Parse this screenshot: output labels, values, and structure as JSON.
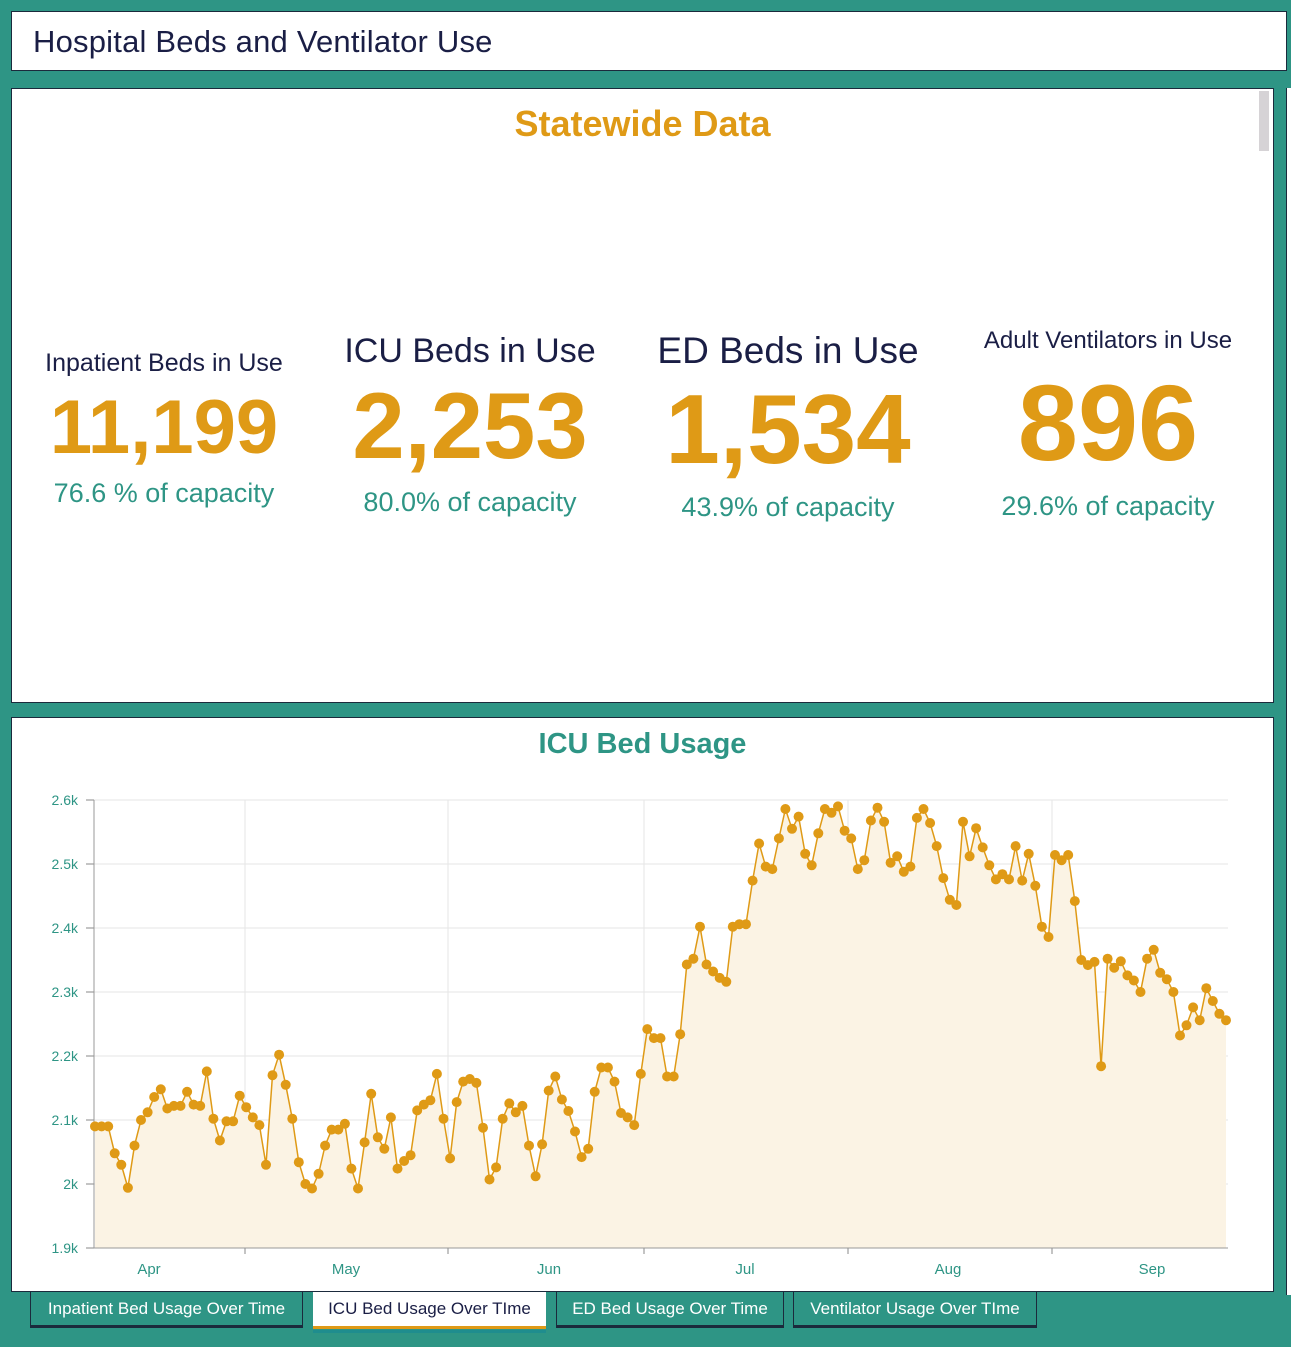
{
  "header": {
    "title": "Hospital Beds and Ventilator Use"
  },
  "summary": {
    "heading": "Statewide Data",
    "stats": [
      {
        "label": "Inpatient Beds in Use",
        "value": "11,199",
        "capacity": "76.6 % of capacity"
      },
      {
        "label": "ICU Beds in Use",
        "value": "2,253",
        "capacity": "80.0% of capacity"
      },
      {
        "label": "ED Beds in Use",
        "value": "1,534",
        "capacity": "43.9% of capacity"
      },
      {
        "label": "Adult Ventilators in Use",
        "value": "896",
        "capacity": "29.6% of capacity"
      }
    ]
  },
  "colors": {
    "accent": "#df9a16",
    "teal": "#2e9585",
    "navy": "#1a1e45",
    "area_fill": "#fbf3e4"
  },
  "tabs": [
    {
      "label": "Inpatient Bed Usage Over Time",
      "active": false
    },
    {
      "label": "ICU Bed Usage Over TIme",
      "active": true
    },
    {
      "label": "ED Bed Usage Over Time",
      "active": false
    },
    {
      "label": "Ventilator Usage Over TIme",
      "active": false
    }
  ],
  "chart_data": {
    "type": "area",
    "title": "ICU Bed Usage",
    "xlabel": "",
    "ylabel": "",
    "ylim": [
      1900,
      2600
    ],
    "yticks": [
      1900,
      2000,
      2100,
      2200,
      2300,
      2400,
      2500,
      2600
    ],
    "ytick_labels": [
      "1.9k",
      "2k",
      "2.1k",
      "2.2k",
      "2.3k",
      "2.4k",
      "2.5k",
      "2.6k"
    ],
    "xtick_labels": [
      "Apr",
      "May",
      "Jun",
      "Jul",
      "Aug",
      "Sep"
    ],
    "grid": true,
    "legend": "none",
    "series": [
      {
        "name": "ICU Beds in Use",
        "values": [
          2090,
          2090,
          2090,
          2048,
          2030,
          1994,
          2060,
          2100,
          2112,
          2136,
          2148,
          2118,
          2122,
          2122,
          2144,
          2124,
          2122,
          2176,
          2102,
          2068,
          2098,
          2098,
          2138,
          2120,
          2104,
          2092,
          2030,
          2170,
          2202,
          2155,
          2102,
          2034,
          2000,
          1993,
          2016,
          2060,
          2085,
          2085,
          2094,
          2024,
          1993,
          2065,
          2141,
          2073,
          2055,
          2104,
          2024,
          2036,
          2045,
          2115,
          2124,
          2131,
          2172,
          2102,
          2040,
          2128,
          2160,
          2164,
          2158,
          2088,
          2007,
          2026,
          2102,
          2126,
          2112,
          2122,
          2060,
          2012,
          2062,
          2146,
          2168,
          2132,
          2114,
          2082,
          2042,
          2055,
          2144,
          2182,
          2182,
          2160,
          2111,
          2104,
          2092,
          2172,
          2242,
          2228,
          2228,
          2168,
          2168,
          2234,
          2343,
          2352,
          2402,
          2343,
          2332,
          2322,
          2316,
          2402,
          2406,
          2406,
          2474,
          2532,
          2496,
          2492,
          2540,
          2586,
          2555,
          2574,
          2516,
          2498,
          2548,
          2586,
          2580,
          2590,
          2552,
          2540,
          2492,
          2506,
          2568,
          2588,
          2566,
          2502,
          2512,
          2488,
          2496,
          2572,
          2586,
          2564,
          2528,
          2478,
          2444,
          2436,
          2566,
          2512,
          2556,
          2526,
          2498,
          2476,
          2484,
          2476,
          2528,
          2474,
          2516,
          2466,
          2402,
          2386,
          2514,
          2506,
          2514,
          2442,
          2350,
          2342,
          2347,
          2184,
          2352,
          2338,
          2348,
          2326,
          2318,
          2300,
          2352,
          2366,
          2330,
          2320,
          2300,
          2232,
          2248,
          2276,
          2256,
          2306,
          2286,
          2266,
          2256
        ]
      }
    ]
  }
}
